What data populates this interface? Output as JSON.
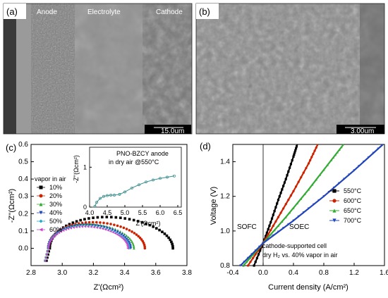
{
  "panels": {
    "a": {
      "label": "(a)",
      "regions": [
        "Anode",
        "Electrolyte",
        "Cathode"
      ],
      "scale_bar": "15.0um"
    },
    "b": {
      "label": "(b)",
      "scale_bar": "3.00um"
    }
  },
  "chart_data": [
    {
      "panel_label": "(c)",
      "type": "scatter",
      "xlabel": "Z'(Ωcm²)",
      "ylabel": "-Z''(Ωcm²)",
      "xlim": [
        2.8,
        3.8
      ],
      "ylim": [
        -0.1,
        0.6
      ],
      "xticks": [
        "2.8",
        "3.0",
        "3.2",
        "3.4",
        "3.6",
        "3.8"
      ],
      "yticks": [
        "0.0",
        "0.1",
        "0.2",
        "0.3",
        "0.4",
        "0.5",
        "0.6"
      ],
      "legend_title": "vapor in air",
      "legend_position": "left",
      "series": [
        {
          "name": "10%",
          "color": "#000000",
          "marker": "square",
          "r_low": 2.92,
          "r_high": 3.71,
          "peak": 0.18
        },
        {
          "name": "20%",
          "color": "#cc2200",
          "marker": "circle",
          "r_low": 2.91,
          "r_high": 3.53,
          "peak": 0.15
        },
        {
          "name": "30%",
          "color": "#33aa33",
          "marker": "triangle",
          "r_low": 2.91,
          "r_high": 3.46,
          "peak": 0.14
        },
        {
          "name": "40%",
          "color": "#2244bb",
          "marker": "tri-down",
          "r_low": 2.91,
          "r_high": 3.44,
          "peak": 0.135
        },
        {
          "name": "50%",
          "color": "#22aacc",
          "marker": "diamond",
          "r_low": 2.91,
          "r_high": 3.43,
          "peak": 0.13
        },
        {
          "name": "60%",
          "color": "#cc44cc",
          "marker": "tri-left",
          "r_low": 2.91,
          "r_high": 3.42,
          "peak": 0.125
        }
      ],
      "inset": {
        "title_lines": [
          "PNO-BZCY anode",
          "in dry air @550°C"
        ],
        "xlabel": "Z'(Ωcm²)",
        "ylabel": "-Z''(Ωcm²)",
        "xlim": [
          4.0,
          6.6
        ],
        "ylim": [
          0,
          1.5
        ],
        "xticks": [
          "4.0",
          "4.5",
          "5.0",
          "5.5",
          "6.0",
          "6.5"
        ],
        "yticks": [
          "0",
          "1"
        ],
        "series_color": "#3b8f8f",
        "x": [
          4.15,
          4.2,
          4.3,
          4.4,
          4.5,
          4.6,
          4.7,
          4.85,
          5.0,
          5.2,
          5.4,
          5.6,
          5.8,
          6.0,
          6.2,
          6.4
        ],
        "y": [
          0.02,
          0.12,
          0.22,
          0.27,
          0.29,
          0.3,
          0.3,
          0.32,
          0.38,
          0.48,
          0.56,
          0.63,
          0.68,
          0.72,
          0.75,
          0.78
        ]
      }
    },
    {
      "panel_label": "(d)",
      "type": "line",
      "xlabel": "Current density (A/cm²)",
      "ylabel": "Voltage (V)",
      "xlim": [
        -0.4,
        1.6
      ],
      "ylim": [
        0.8,
        1.5
      ],
      "xticks": [
        "-0.4",
        "0.0",
        "0.4",
        "0.8",
        "1.2",
        "1.6"
      ],
      "yticks": [
        "0.8",
        "1.0",
        "1.2",
        "1.4"
      ],
      "legend_position": "right",
      "region_labels": [
        "SOFC",
        "SOEC"
      ],
      "annotation_lines": [
        "cathode-supported cell",
        "dry H₂ vs. 40% vapor in air"
      ],
      "series": [
        {
          "name": "550°C",
          "color": "#000000",
          "marker": "square",
          "x": [
            -0.12,
            0.0,
            0.1,
            0.2,
            0.3,
            0.4,
            0.45
          ],
          "y": [
            0.8,
            0.93,
            1.05,
            1.18,
            1.3,
            1.43,
            1.5
          ]
        },
        {
          "name": "600°C",
          "color": "#cc2200",
          "marker": "circle",
          "x": [
            -0.2,
            0.0,
            0.2,
            0.4,
            0.6,
            0.72
          ],
          "y": [
            0.8,
            0.93,
            1.08,
            1.23,
            1.39,
            1.5
          ]
        },
        {
          "name": "650°C",
          "color": "#33aa33",
          "marker": "triangle",
          "x": [
            -0.26,
            0.0,
            0.3,
            0.6,
            0.9,
            1.06
          ],
          "y": [
            0.8,
            0.93,
            1.08,
            1.24,
            1.41,
            1.5
          ]
        },
        {
          "name": "700°C",
          "color": "#2244bb",
          "marker": "tri-down",
          "x": [
            -0.3,
            0.0,
            0.4,
            0.8,
            1.2,
            1.58
          ],
          "y": [
            0.8,
            0.93,
            1.06,
            1.2,
            1.35,
            1.5
          ]
        }
      ]
    }
  ]
}
